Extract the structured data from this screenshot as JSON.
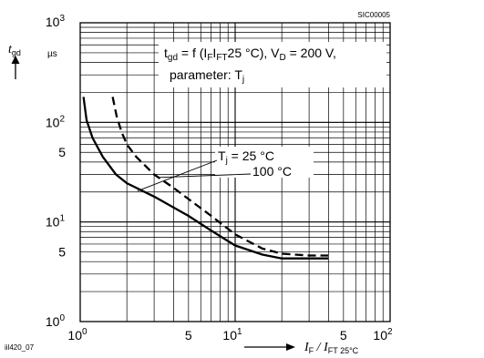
{
  "figure_id": "SIC00005",
  "footer_code": "iil420_07",
  "chart_data": {
    "type": "line",
    "title": "",
    "xlabel": "",
    "ylabel": "",
    "x_scale": "log",
    "y_scale": "log",
    "xlim": [
      1,
      100
    ],
    "ylim": [
      1,
      1000
    ],
    "grid": true,
    "y_unit": "µs",
    "y_symbol": {
      "main": "t",
      "sub": "gd"
    },
    "x_axis_label": {
      "a": "I",
      "a_sub": "F",
      "slash": " / ",
      "b": "I",
      "b_sub": "FT 25°C"
    },
    "x_ticks": [
      {
        "value": 1,
        "base": "10",
        "exp": "0"
      },
      {
        "value": 5,
        "base": "5",
        "exp": ""
      },
      {
        "value": 10,
        "base": "10",
        "exp": "1"
      },
      {
        "value": 50,
        "base": "5",
        "exp": ""
      },
      {
        "value": 100,
        "base": "10",
        "exp": "2"
      }
    ],
    "y_ticks": [
      {
        "value": 1,
        "base": "10",
        "exp": "0"
      },
      {
        "value": 5,
        "base": "5",
        "exp": ""
      },
      {
        "value": 10,
        "base": "10",
        "exp": "1"
      },
      {
        "value": 50,
        "base": "5",
        "exp": ""
      },
      {
        "value": 100,
        "base": "10",
        "exp": "2"
      },
      {
        "value": 1000,
        "base": "10",
        "exp": "3"
      }
    ],
    "annotation": {
      "line1_a": "t",
      "line1_a_sub": "gd",
      "line1_b": " = f (I",
      "line1_b_sub": "F",
      "line1_c": "I",
      "line1_c_sub": "FT",
      "line1_d": "25 °C), V",
      "line1_d_sub": "D",
      "line1_e": " = 200 V,",
      "line2_a": "parameter: T",
      "line2_a_sub": "j"
    },
    "series": [
      {
        "label_main": "T",
        "label_sub": "j",
        "label_rest": " = 25 °C",
        "dash": false,
        "x": [
          1.05,
          1.1,
          1.2,
          1.4,
          1.7,
          2.0,
          3.0,
          5.0,
          7.0,
          10,
          15,
          20,
          30,
          40
        ],
        "y": [
          180,
          105,
          70,
          45,
          30,
          24.5,
          18,
          11.5,
          8.2,
          5.8,
          4.7,
          4.3,
          4.3,
          4.3
        ]
      },
      {
        "label_main": "",
        "label_sub": "",
        "label_rest": "100 °C",
        "dash": true,
        "x": [
          1.62,
          1.72,
          1.85,
          2.0,
          2.3,
          3.0,
          4.0,
          5.0,
          7.0,
          10,
          15,
          20,
          30,
          40
        ],
        "y": [
          180,
          115,
          80,
          60,
          45,
          30,
          22,
          17,
          11.5,
          7.5,
          5.4,
          4.8,
          4.6,
          4.6
        ]
      }
    ]
  }
}
